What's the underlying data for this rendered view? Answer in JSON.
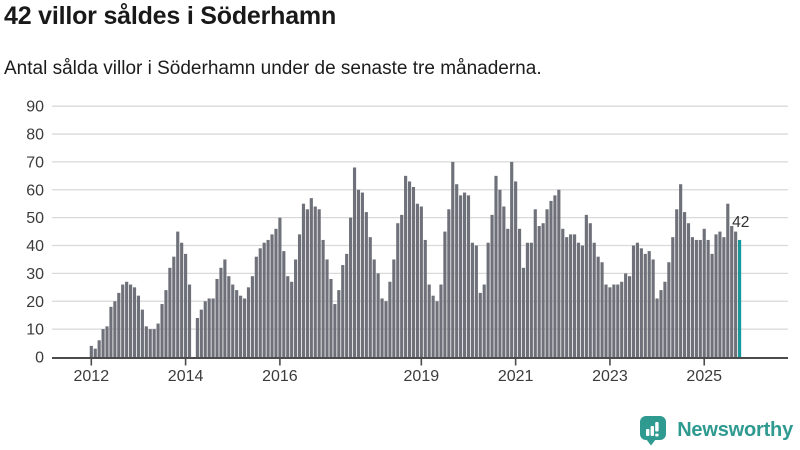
{
  "header": {
    "title": "42 villor såldes i Söderhamn",
    "subtitle": "Antal sålda villor i Söderhamn under de senaste tre månaderna."
  },
  "chart_data": {
    "type": "bar",
    "title": "42 villor såldes i Söderhamn",
    "start_month": "2012-01",
    "frequency": "monthly",
    "ylim": [
      0,
      90
    ],
    "yticks": [
      0,
      10,
      20,
      30,
      40,
      50,
      60,
      70,
      80,
      90
    ],
    "xticks": [
      {
        "label": "2012",
        "month": 0
      },
      {
        "label": "2014",
        "month": 24
      },
      {
        "label": "2016",
        "month": 48
      },
      {
        "label": "2019",
        "month": 84
      },
      {
        "label": "2021",
        "month": 108
      },
      {
        "label": "2023",
        "month": 132
      },
      {
        "label": "2025",
        "month": 156
      }
    ],
    "values": [
      4,
      3,
      6,
      10,
      11,
      18,
      20,
      23,
      26,
      27,
      26,
      25,
      22,
      17,
      11,
      10,
      10,
      12,
      19,
      24,
      32,
      36,
      45,
      41,
      37,
      26,
      0,
      14,
      17,
      20,
      21,
      21,
      28,
      32,
      35,
      29,
      26,
      24,
      22,
      21,
      25,
      29,
      36,
      39,
      41,
      42,
      44,
      46,
      50,
      38,
      29,
      27,
      35,
      44,
      55,
      53,
      57,
      54,
      53,
      42,
      35,
      28,
      19,
      24,
      33,
      37,
      50,
      68,
      60,
      59,
      52,
      43,
      35,
      30,
      21,
      20,
      27,
      35,
      48,
      51,
      65,
      63,
      61,
      55,
      54,
      42,
      26,
      22,
      20,
      26,
      45,
      53,
      70,
      62,
      58,
      59,
      58,
      41,
      40,
      23,
      26,
      41,
      51,
      65,
      60,
      54,
      46,
      70,
      63,
      46,
      32,
      41,
      41,
      53,
      47,
      48,
      53,
      56,
      58,
      60,
      46,
      43,
      44,
      44,
      41,
      40,
      51,
      48,
      41,
      36,
      34,
      26,
      25,
      26,
      26,
      27,
      30,
      29,
      40,
      41,
      39,
      37,
      38,
      35,
      21,
      24,
      27,
      34,
      43,
      53,
      62,
      52,
      48,
      43,
      42,
      42,
      46,
      42,
      37,
      44,
      45,
      43,
      55,
      47,
      45,
      42
    ],
    "highlight_index": 165,
    "highlight_label": "42",
    "grid": true,
    "legend": "none",
    "colors": {
      "bar": "#6e7179",
      "highlight": "#17999b",
      "grid": "#d9d9d9",
      "axis": "#4c4c4c",
      "tick_text": "#3b3b3b",
      "annotation": "#333333"
    }
  },
  "branding": {
    "logo_text": "Newsworthy",
    "logo_color": "#2e9a90"
  }
}
